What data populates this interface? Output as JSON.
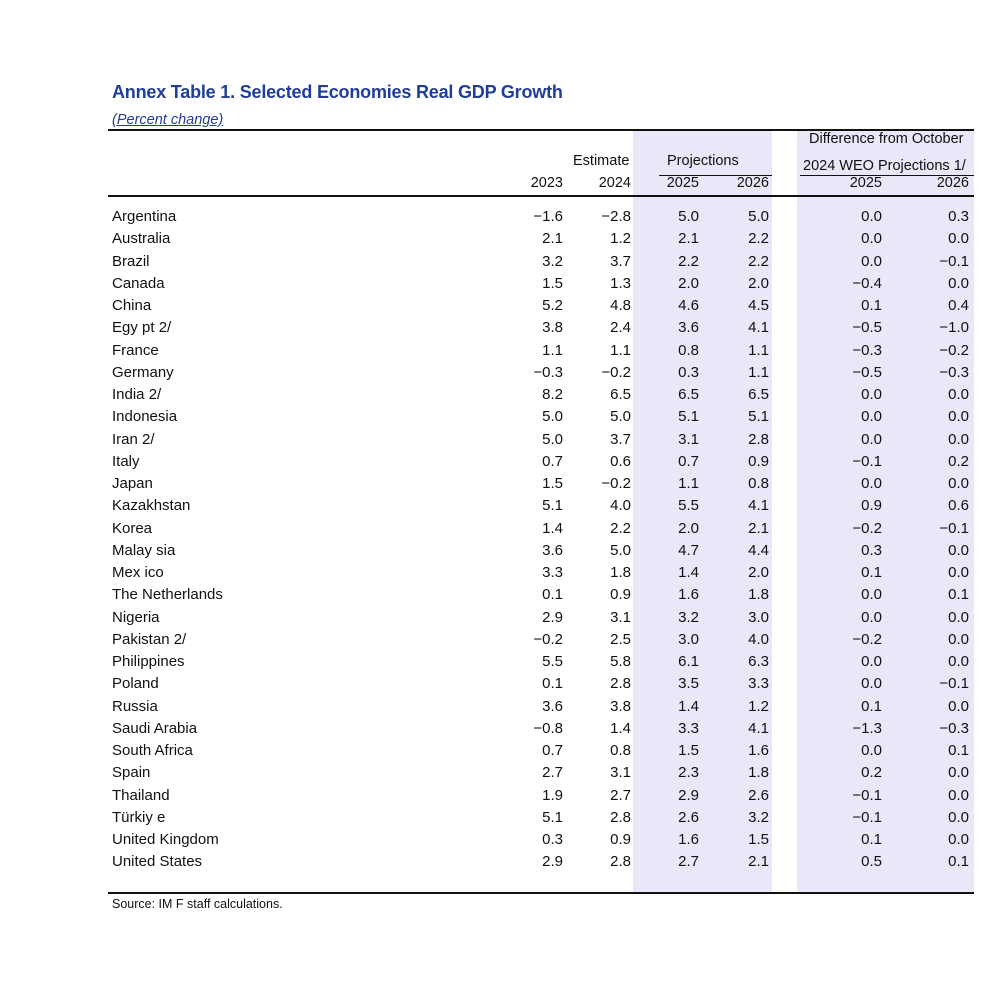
{
  "title": "Annex Table 1. Selected Economies Real GDP Growth",
  "subtitle": "(Percent change)",
  "header": {
    "estimate": "Estimate",
    "projections": "Projections",
    "difference_line1": "Difference from October",
    "difference_line2": "2024 WEO Projections 1/",
    "years": [
      "2023",
      "2024",
      "2025",
      "2026",
      "2025",
      "2026"
    ]
  },
  "rows": [
    {
      "name": "Argentina",
      "values": [
        "−1.6",
        "−2.8",
        "5.0",
        "5.0",
        "0.0",
        "0.3"
      ]
    },
    {
      "name": "Australia",
      "values": [
        "2.1",
        "1.2",
        "2.1",
        "2.2",
        "0.0",
        "0.0"
      ]
    },
    {
      "name": "Brazil",
      "values": [
        "3.2",
        "3.7",
        "2.2",
        "2.2",
        "0.0",
        "−0.1"
      ]
    },
    {
      "name": "Canada",
      "values": [
        "1.5",
        "1.3",
        "2.0",
        "2.0",
        "−0.4",
        "0.0"
      ]
    },
    {
      "name": "China",
      "values": [
        "5.2",
        "4.8",
        "4.6",
        "4.5",
        "0.1",
        "0.4"
      ]
    },
    {
      "name": "Egy pt 2/",
      "values": [
        "3.8",
        "2.4",
        "3.6",
        "4.1",
        "−0.5",
        "−1.0"
      ]
    },
    {
      "name": "France",
      "values": [
        "1.1",
        "1.1",
        "0.8",
        "1.1",
        "−0.3",
        "−0.2"
      ]
    },
    {
      "name": "Germany",
      "values": [
        "−0.3",
        "−0.2",
        "0.3",
        "1.1",
        "−0.5",
        "−0.3"
      ]
    },
    {
      "name": "India 2/",
      "values": [
        "8.2",
        "6.5",
        "6.5",
        "6.5",
        "0.0",
        "0.0"
      ]
    },
    {
      "name": "Indonesia",
      "values": [
        "5.0",
        "5.0",
        "5.1",
        "5.1",
        "0.0",
        "0.0"
      ]
    },
    {
      "name": "Iran 2/",
      "values": [
        "5.0",
        "3.7",
        "3.1",
        "2.8",
        "0.0",
        "0.0"
      ]
    },
    {
      "name": "Italy",
      "values": [
        "0.7",
        "0.6",
        "0.7",
        "0.9",
        "−0.1",
        "0.2"
      ]
    },
    {
      "name": "Japan",
      "values": [
        "1.5",
        "−0.2",
        "1.1",
        "0.8",
        "0.0",
        "0.0"
      ]
    },
    {
      "name": "Kazakhstan",
      "values": [
        "5.1",
        "4.0",
        "5.5",
        "4.1",
        "0.9",
        "0.6"
      ]
    },
    {
      "name": "Korea",
      "values": [
        "1.4",
        "2.2",
        "2.0",
        "2.1",
        "−0.2",
        "−0.1"
      ]
    },
    {
      "name": "Malay sia",
      "values": [
        "3.6",
        "5.0",
        "4.7",
        "4.4",
        "0.3",
        "0.0"
      ]
    },
    {
      "name": "Mex ico",
      "values": [
        "3.3",
        "1.8",
        "1.4",
        "2.0",
        "0.1",
        "0.0"
      ]
    },
    {
      "name": "The Netherlands",
      "values": [
        "0.1",
        "0.9",
        "1.6",
        "1.8",
        "0.0",
        "0.1"
      ]
    },
    {
      "name": "Nigeria",
      "values": [
        "2.9",
        "3.1",
        "3.2",
        "3.0",
        "0.0",
        "0.0"
      ]
    },
    {
      "name": "Pakistan 2/",
      "values": [
        "−0.2",
        "2.5",
        "3.0",
        "4.0",
        "−0.2",
        "0.0"
      ]
    },
    {
      "name": "Philippines",
      "values": [
        "5.5",
        "5.8",
        "6.1",
        "6.3",
        "0.0",
        "0.0"
      ]
    },
    {
      "name": "Poland",
      "values": [
        "0.1",
        "2.8",
        "3.5",
        "3.3",
        "0.0",
        "−0.1"
      ]
    },
    {
      "name": "Russia",
      "values": [
        "3.6",
        "3.8",
        "1.4",
        "1.2",
        "0.1",
        "0.0"
      ]
    },
    {
      "name": "Saudi Arabia",
      "values": [
        "−0.8",
        "1.4",
        "3.3",
        "4.1",
        "−1.3",
        "−0.3"
      ]
    },
    {
      "name": "South Africa",
      "values": [
        "0.7",
        "0.8",
        "1.5",
        "1.6",
        "0.0",
        "0.1"
      ]
    },
    {
      "name": "Spain",
      "values": [
        "2.7",
        "3.1",
        "2.3",
        "1.8",
        "0.2",
        "0.0"
      ]
    },
    {
      "name": "Thailand",
      "values": [
        "1.9",
        "2.7",
        "2.9",
        "2.6",
        "−0.1",
        "0.0"
      ]
    },
    {
      "name": "Türkiy e",
      "values": [
        "5.1",
        "2.8",
        "2.6",
        "3.2",
        "−0.1",
        "0.0"
      ]
    },
    {
      "name": "United Kingdom",
      "values": [
        "0.3",
        "0.9",
        "1.6",
        "1.5",
        "0.1",
        "0.0"
      ]
    },
    {
      "name": "United States",
      "values": [
        "2.9",
        "2.8",
        "2.7",
        "2.1",
        "0.5",
        "0.1"
      ]
    }
  ],
  "footnote": "Source: IM F staff calculations.",
  "colors": {
    "title": "#1f3d99",
    "shade": "#e8e8f8"
  }
}
